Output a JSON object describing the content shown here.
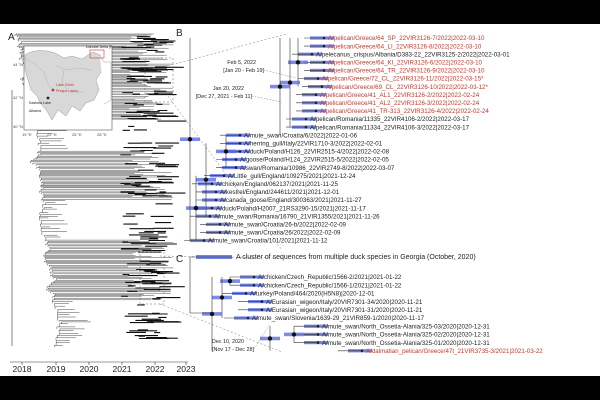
{
  "figure": {
    "panels": {
      "A": "A",
      "B": "B",
      "C": "C"
    },
    "axis_years": [
      "2018",
      "2019",
      "2020",
      "2021",
      "2022",
      "2023"
    ],
    "map": {
      "lat_labels": [
        "44 °N",
        "42 °N",
        "40 °N"
      ],
      "lon_labels": [
        "19 °E",
        "22 °E",
        "25 °E",
        "28 °E"
      ],
      "places": {
        "danube": "Danube Delta (Romania)",
        "kastoria": "Kastoria Lake",
        "prespa": "Prespa Lakes",
        "lake_ohrid": "Lake Ohrid",
        "albania": "Albania"
      }
    },
    "annotations": {
      "feb5": "Feb 5, 2022",
      "feb5_range": "[Jan 20 - Feb 19]",
      "jan20": "Jan 20, 2022",
      "jan20_range": "[Dec 27, 2021 - Feb 11]",
      "dec10": "Dec 10, 2020",
      "dec10_range": "[Nov 17 - Dec 28]",
      "georgia": "A cluster of sequences from multiple duck species in Georgia (October, 2020)"
    },
    "colors": {
      "highlight": "#c0392b",
      "bar": "#5b6ee1",
      "text": "#222222",
      "line": "#333333",
      "panel_bg": "#ffffff",
      "map_land": "#d8d8d8",
      "map_sea": "#ffffff"
    },
    "tips_b": [
      {
        "label": "A/pelican/Greece/64_SP_22VIR3126-7/2022|2022-03-10",
        "red": true
      },
      {
        "label": "A/pelican/Greece/64_LI_22VIR3126-8/2022|2022-03-10",
        "red": true
      },
      {
        "label": "A/pelecanus_crispus/Albania/D383-22_22VIR3125-2/2022|2022-03-01",
        "red": false
      },
      {
        "label": "A/pelican/Greece/64_KI_22VIR3126-6/2022|2022-03-10",
        "red": true
      },
      {
        "label": "A/pelican/Greece/64_TR_22VIR3126-9/2022|2022-03-10",
        "red": true
      },
      {
        "label": "A/pelican/Greece/72_CL_22VIR3126-11/2022|2022-03-15*",
        "red": true
      },
      {
        "label": "A/pelican/Greece/69_CL_22VIR3126-10/2022|2022-03-12*",
        "red": true
      },
      {
        "label": "A/pelican/Greece/41_AL1_22VIR3126-2/2022|2022-02-24",
        "red": true
      },
      {
        "label": "A/pelican/Greece/41_AL2_22VIR3126-3/2022|2022-02-24",
        "red": true
      },
      {
        "label": "A/pelican/Greece/41_TR-313_22VIR3126-4/2022|2022-02-24",
        "red": true
      },
      {
        "label": "A/pelican/Romania/11335_22VIR4106-2/2022|2022-03-17",
        "red": false
      },
      {
        "label": "A/pelican/Romania/11334_22VIR4106-3/2022|2022-03-17",
        "red": false
      },
      {
        "label": "A/mute_swan/Croatia/6/2022|2022-01-06",
        "red": false
      },
      {
        "label": "A/herring_gull/Italy/22VIR1710-3/2022|2022-02-01",
        "red": false
      },
      {
        "label": "A/duck/Poland/H126_22VIR2515-4/2022|2022-02-08",
        "red": false
      },
      {
        "label": "A/goose/Poland/H124_22VIR2515-5/2022|2022-02-05",
        "red": false
      },
      {
        "label": "A/swan/Romania/10986_22VIR2749-8/2022|2022-03-07",
        "red": false
      },
      {
        "label": "A/Little_gull/England/109275/2021|2021-12-24",
        "red": false
      },
      {
        "label": "A/chicken/England/062137/2021|2021-11-25",
        "red": false
      },
      {
        "label": "A/kestrel/England/244611/2021|2021-12-01",
        "red": false
      },
      {
        "label": "A/canada_goose/England/300363/2021|2021-11-27",
        "red": false
      },
      {
        "label": "A/duck/Poland/H2007_21RS3290-15/2021|2021-11-17",
        "red": false
      },
      {
        "label": "A/mute_swan/Romania/16790_21VIR1355/2021|2021-11-26",
        "red": false
      },
      {
        "label": "A/mute_swan/Croatia/26-b/2022|2022-02-09",
        "red": false
      },
      {
        "label": "A/mute_swan/Croatia/26/2022|2022-02-09",
        "red": false
      },
      {
        "label": "A/mute_swan/Croatia/101/2021|2021-11-12",
        "red": false
      }
    ],
    "tips_c": [
      {
        "label": "A/chicken/Czech_Republic/1566-2/2021|2021-01-22",
        "red": false
      },
      {
        "label": "A/chicken/Czech_Republic/1566-1/2021|2021-01-22",
        "red": false
      },
      {
        "label": "A/turkey/Poland/464/2020(H5N8)|2020-12-01",
        "red": false
      },
      {
        "label": "A/Eurasian_wigeon/Italy/20VIR7301-34/2020|2020-11-21",
        "red": false
      },
      {
        "label": "A/Eurasian_wigeon/Italy/20VIR7301-31/2020|2020-11-21",
        "red": false
      },
      {
        "label": "A/mute_swan/Slovenia/1639-29_21VIR859-1/2020|2020-11-17",
        "red": false
      },
      {
        "label": "A/mute_swan/North_Ossetia-Alania/325-03/2020|2020-12-31",
        "red": false
      },
      {
        "label": "A/mute_swan/North_Ossetia-Alania/325-02/2020|2020-12-31",
        "red": false
      },
      {
        "label": "A/mute_swan/North_Ossetia-Alania/325-01/2020|2020-12-31",
        "red": false
      },
      {
        "label": "A/dalmatian_pelican/Greece/47t_21VIR3735-3/2021|2021-03-22",
        "red": true
      }
    ]
  }
}
